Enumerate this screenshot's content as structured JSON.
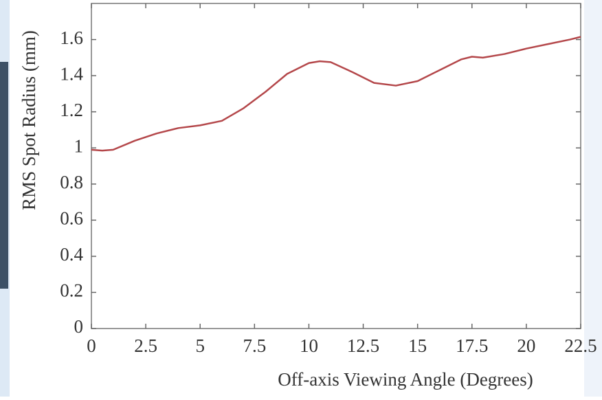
{
  "chart_data": {
    "type": "line",
    "x_label": "Off-axis Viewing Angle (Degrees)",
    "y_label": "RMS Spot Radius (mm)",
    "x": [
      0,
      0.5,
      1,
      2,
      3,
      4,
      5,
      6,
      7,
      8,
      9,
      10,
      10.5,
      11,
      12,
      13,
      14,
      15,
      16,
      17,
      17.5,
      18,
      19,
      20,
      21,
      22,
      22.5
    ],
    "series": [
      {
        "color": "#b4474a",
        "values": [
          0.99,
          0.985,
          0.99,
          1.04,
          1.08,
          1.11,
          1.125,
          1.15,
          1.22,
          1.31,
          1.41,
          1.47,
          1.48,
          1.475,
          1.42,
          1.36,
          1.345,
          1.37,
          1.43,
          1.49,
          1.505,
          1.5,
          1.52,
          1.55,
          1.575,
          1.6,
          1.615
        ]
      }
    ],
    "xlim": [
      0,
      22.5
    ],
    "xticks": [
      0,
      2.5,
      5,
      7.5,
      10,
      12.5,
      15,
      17.5,
      20,
      22.5
    ],
    "ylim": [
      0,
      1.8
    ],
    "yticks": [
      0,
      0.2,
      0.4,
      0.6,
      0.8,
      1,
      1.2,
      1.4,
      1.6
    ]
  }
}
